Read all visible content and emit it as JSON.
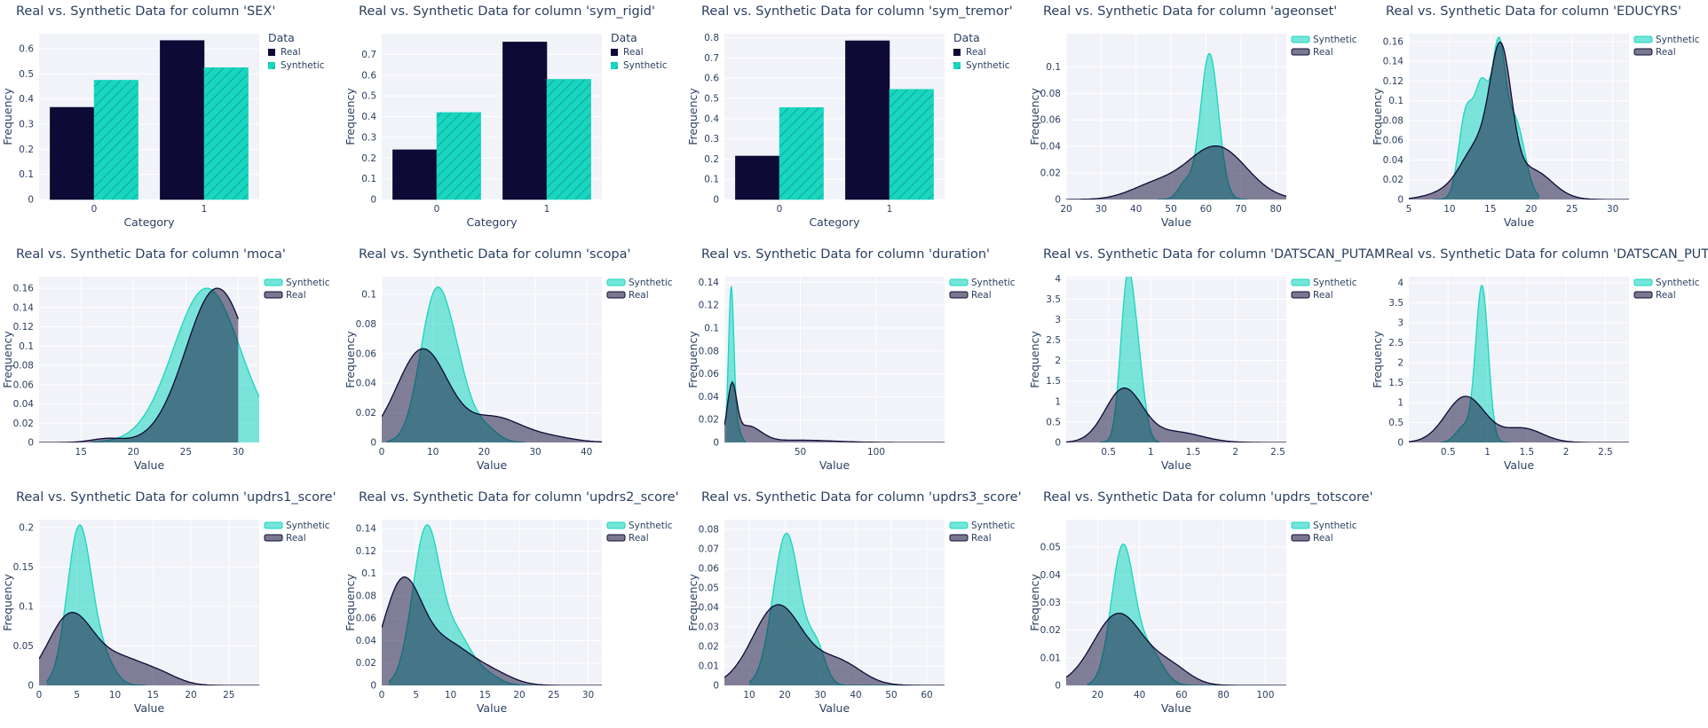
{
  "colors": {
    "real": "#0d0a35",
    "synthetic": "#18d6c0",
    "plot_bg": "#f2f3f9",
    "grid": "#ffffff",
    "text": "#2a3f5f"
  },
  "chart_data": [
    {
      "type": "bar",
      "title": "Real vs. Synthetic Data for column 'SEX'",
      "xlabel": "Category",
      "ylabel": "Frequency",
      "categories": [
        "0",
        "1"
      ],
      "series": [
        {
          "name": "Real",
          "values": [
            0.367,
            0.633
          ]
        },
        {
          "name": "Synthetic",
          "values": [
            0.475,
            0.525
          ]
        }
      ],
      "ylim": [
        0,
        0.66
      ],
      "yticks": [
        0,
        0.1,
        0.2,
        0.3,
        0.4,
        0.5,
        0.6
      ],
      "legend_title": "Data",
      "legend": [
        "Real",
        "Synthetic"
      ]
    },
    {
      "type": "bar",
      "title": "Real vs. Synthetic Data for column 'sym_rigid'",
      "xlabel": "Category",
      "ylabel": "Frequency",
      "categories": [
        "0",
        "1"
      ],
      "series": [
        {
          "name": "Real",
          "values": [
            0.24,
            0.76
          ]
        },
        {
          "name": "Synthetic",
          "values": [
            0.42,
            0.58
          ]
        }
      ],
      "ylim": [
        0,
        0.8
      ],
      "yticks": [
        0,
        0.1,
        0.2,
        0.3,
        0.4,
        0.5,
        0.6,
        0.7
      ],
      "legend_title": "Data",
      "legend": [
        "Real",
        "Synthetic"
      ]
    },
    {
      "type": "bar",
      "title": "Real vs. Synthetic Data for column 'sym_tremor'",
      "xlabel": "Category",
      "ylabel": "Frequency",
      "categories": [
        "0",
        "1"
      ],
      "series": [
        {
          "name": "Real",
          "values": [
            0.215,
            0.785
          ]
        },
        {
          "name": "Synthetic",
          "values": [
            0.455,
            0.545
          ]
        }
      ],
      "ylim": [
        0,
        0.82
      ],
      "yticks": [
        0,
        0.1,
        0.2,
        0.3,
        0.4,
        0.5,
        0.6,
        0.7,
        0.8
      ],
      "legend_title": "Data",
      "legend": [
        "Real",
        "Synthetic"
      ]
    },
    {
      "type": "area",
      "title": "Real vs. Synthetic Data for column 'ageonset'",
      "xlabel": "Value",
      "ylabel": "Frequency",
      "xlim": [
        20,
        83
      ],
      "ylim": [
        0,
        0.125
      ],
      "xticks": [
        20,
        30,
        40,
        50,
        60,
        70,
        80
      ],
      "yticks": [
        0,
        0.02,
        0.04,
        0.06,
        0.08,
        0.1
      ],
      "legend": [
        "Synthetic",
        "Real"
      ],
      "synthetic": {
        "range": [
          46,
          72
        ],
        "peaks": [
          [
            61,
            0.11,
            2.6
          ],
          [
            54,
            0.012,
            2.0
          ]
        ]
      },
      "real": {
        "range": [
          20,
          83
        ],
        "peaks": [
          [
            63,
            0.04,
            8.5
          ],
          [
            45,
            0.01,
            7
          ]
        ]
      }
    },
    {
      "type": "area",
      "title": "Real vs. Synthetic Data for column 'EDUCYRS'",
      "xlabel": "Value",
      "ylabel": "Frequency",
      "xlim": [
        5,
        32
      ],
      "ylim": [
        0,
        0.168
      ],
      "xticks": [
        5,
        10,
        15,
        20,
        25,
        30
      ],
      "yticks": [
        0,
        0.02,
        0.04,
        0.06,
        0.08,
        0.1,
        0.12,
        0.14,
        0.16
      ],
      "legend": [
        "Synthetic",
        "Real"
      ],
      "synthetic": {
        "range": [
          8,
          21
        ],
        "peaks": [
          [
            12,
            0.085,
            0.9
          ],
          [
            14,
            0.11,
            0.9
          ],
          [
            16,
            0.135,
            0.8
          ],
          [
            18,
            0.08,
            1.2
          ]
        ]
      },
      "real": {
        "range": [
          5,
          32
        ],
        "peaks": [
          [
            16.3,
            0.13,
            1.3
          ],
          [
            13.5,
            0.05,
            2.0
          ],
          [
            20,
            0.03,
            2.5
          ],
          [
            10,
            0.008,
            2.5
          ]
        ]
      }
    },
    {
      "type": "area",
      "title": "Real vs. Synthetic Data for column 'moca'",
      "xlabel": "Value",
      "ylabel": "Frequency",
      "xlim": [
        11,
        32
      ],
      "ylim": [
        0,
        0.172
      ],
      "xticks": [
        15,
        20,
        25,
        30
      ],
      "yticks": [
        0,
        0.02,
        0.04,
        0.06,
        0.08,
        0.1,
        0.12,
        0.14,
        0.16
      ],
      "legend": [
        "Synthetic",
        "Real"
      ],
      "synthetic": {
        "range": [
          16,
          32
        ],
        "peaks": [
          [
            27,
            0.16,
            3.2
          ]
        ]
      },
      "real": {
        "range": [
          11,
          30
        ],
        "peaks": [
          [
            28,
            0.16,
            3.0
          ],
          [
            17.5,
            0.004,
            1.5
          ]
        ]
      }
    },
    {
      "type": "area",
      "title": "Real vs. Synthetic Data for column 'scopa'",
      "xlabel": "Value",
      "ylabel": "Frequency",
      "xlim": [
        0,
        43
      ],
      "ylim": [
        0,
        0.112
      ],
      "xticks": [
        0,
        10,
        20,
        30,
        40
      ],
      "yticks": [
        0,
        0.02,
        0.04,
        0.06,
        0.08,
        0.1
      ],
      "legend": [
        "Synthetic",
        "Real"
      ],
      "synthetic": {
        "range": [
          1,
          28
        ],
        "peaks": [
          [
            10.5,
            0.098,
            3.0
          ],
          [
            15,
            0.03,
            2.5
          ],
          [
            20,
            0.01,
            2.5
          ]
        ]
      },
      "real": {
        "range": [
          0,
          43
        ],
        "peaks": [
          [
            8,
            0.063,
            5.0
          ],
          [
            22,
            0.016,
            5.0
          ],
          [
            32,
            0.004,
            5
          ]
        ]
      }
    },
    {
      "type": "area",
      "title": "Real vs. Synthetic Data for column 'duration'",
      "xlabel": "Value",
      "ylabel": "Frequency",
      "xlim": [
        0,
        145
      ],
      "ylim": [
        0,
        0.145
      ],
      "xticks": [
        0,
        50,
        100
      ],
      "xticklabels": [
        "",
        "50",
        "100"
      ],
      "yticks": [
        0,
        0.02,
        0.04,
        0.06,
        0.08,
        0.1,
        0.12,
        0.14
      ],
      "legend": [
        "Synthetic",
        "Real"
      ],
      "synthetic": {
        "range": [
          1,
          14
        ],
        "peaks": [
          [
            4.5,
            0.135,
            1.8
          ],
          [
            9,
            0.012,
            2
          ]
        ]
      },
      "real": {
        "range": [
          0,
          145
        ],
        "peaks": [
          [
            5,
            0.045,
            3
          ],
          [
            15,
            0.014,
            9
          ],
          [
            50,
            0.002,
            22
          ]
        ]
      }
    },
    {
      "type": "area",
      "title": "Real vs. Synthetic Data for column 'DATSCAN_PUTAM",
      "xlabel": "Value",
      "ylabel": "Frequency",
      "xlim": [
        0,
        2.6
      ],
      "ylim": [
        0,
        4.05
      ],
      "xticks": [
        0.5,
        1,
        1.5,
        2,
        2.5
      ],
      "yticks": [
        0,
        0.5,
        1,
        1.5,
        2,
        2.5,
        3,
        3.5,
        4
      ],
      "legend": [
        "Synthetic",
        "Real"
      ],
      "synthetic": {
        "range": [
          0.4,
          1.1
        ],
        "peaks": [
          [
            0.72,
            3.7,
            0.08
          ],
          [
            0.85,
            1.6,
            0.08
          ]
        ]
      },
      "real": {
        "range": [
          0,
          2.6
        ],
        "peaks": [
          [
            0.68,
            1.3,
            0.22
          ],
          [
            1.3,
            0.25,
            0.3
          ]
        ]
      }
    },
    {
      "type": "area",
      "title": "Real vs. Synthetic Data for column 'DATSCAN_PUTAM",
      "xlabel": "Value",
      "ylabel": "Frequency",
      "xlim": [
        0,
        2.8
      ],
      "ylim": [
        0,
        4.15
      ],
      "xticks": [
        0.5,
        1,
        1.5,
        2,
        2.5
      ],
      "yticks": [
        0,
        0.5,
        1,
        1.5,
        2,
        2.5,
        3,
        3.5,
        4
      ],
      "legend": [
        "Synthetic",
        "Real"
      ],
      "synthetic": {
        "range": [
          0.4,
          1.3
        ],
        "peaks": [
          [
            0.93,
            3.9,
            0.08
          ],
          [
            0.7,
            0.4,
            0.1
          ]
        ]
      },
      "real": {
        "range": [
          0,
          2.8
        ],
        "peaks": [
          [
            0.72,
            1.15,
            0.25
          ],
          [
            1.45,
            0.35,
            0.25
          ]
        ]
      }
    },
    {
      "type": "area",
      "title": "Real vs. Synthetic Data for column 'updrs1_score'",
      "xlabel": "Value",
      "ylabel": "Frequency",
      "xlim": [
        0,
        29
      ],
      "ylim": [
        0,
        0.21
      ],
      "xticks": [
        0,
        5,
        10,
        15,
        20,
        25
      ],
      "yticks": [
        0,
        0.05,
        0.1,
        0.15,
        0.2
      ],
      "legend": [
        "Synthetic",
        "Real"
      ],
      "synthetic": {
        "range": [
          1,
          14
        ],
        "peaks": [
          [
            5.3,
            0.2,
            1.6
          ],
          [
            8.5,
            0.03,
            1.5
          ]
        ]
      },
      "real": {
        "range": [
          0,
          29
        ],
        "peaks": [
          [
            4.2,
            0.09,
            3.0
          ],
          [
            11,
            0.03,
            3.0
          ],
          [
            16,
            0.012,
            2.5
          ]
        ]
      }
    },
    {
      "type": "area",
      "title": "Real vs. Synthetic Data for column 'updrs2_score'",
      "xlabel": "Value",
      "ylabel": "Frequency",
      "xlim": [
        0,
        32
      ],
      "ylim": [
        0,
        0.148
      ],
      "xticks": [
        0,
        5,
        10,
        15,
        20,
        25,
        30
      ],
      "yticks": [
        0,
        0.02,
        0.04,
        0.06,
        0.08,
        0.1,
        0.12,
        0.14
      ],
      "legend": [
        "Synthetic",
        "Real"
      ],
      "synthetic": {
        "range": [
          1,
          22
        ],
        "peaks": [
          [
            6.5,
            0.14,
            2.0
          ],
          [
            11,
            0.04,
            2.0
          ],
          [
            15,
            0.01,
            2.0
          ]
        ]
      },
      "real": {
        "range": [
          0,
          32
        ],
        "peaks": [
          [
            3,
            0.09,
            2.8
          ],
          [
            9.5,
            0.035,
            3.5
          ],
          [
            16,
            0.01,
            3
          ]
        ]
      }
    },
    {
      "type": "area",
      "title": "Real vs. Synthetic Data for column 'updrs3_score'",
      "xlabel": "Value",
      "ylabel": "Frequency",
      "xlim": [
        3,
        65
      ],
      "ylim": [
        0,
        0.085
      ],
      "xticks": [
        10,
        20,
        30,
        40,
        50,
        60
      ],
      "yticks": [
        0,
        0.01,
        0.02,
        0.03,
        0.04,
        0.05,
        0.06,
        0.07,
        0.08
      ],
      "legend": [
        "Synthetic",
        "Real"
      ],
      "synthetic": {
        "range": [
          10,
          65
        ],
        "peaks": [
          [
            20.5,
            0.078,
            3.8
          ],
          [
            29,
            0.018,
            2.5
          ]
        ]
      },
      "real": {
        "range": [
          3,
          65
        ],
        "peaks": [
          [
            18,
            0.041,
            7.0
          ],
          [
            35,
            0.012,
            6.5
          ]
        ]
      }
    },
    {
      "type": "area",
      "title": "Real vs. Synthetic Data for column 'updrs_totscore'",
      "xlabel": "Value",
      "ylabel": "Frequency",
      "xlim": [
        5,
        110
      ],
      "ylim": [
        0,
        0.06
      ],
      "xticks": [
        20,
        40,
        60,
        80,
        100
      ],
      "yticks": [
        0,
        0.01,
        0.02,
        0.03,
        0.04,
        0.05
      ],
      "legend": [
        "Synthetic",
        "Real"
      ],
      "synthetic": {
        "range": [
          15,
          105
        ],
        "peaks": [
          [
            32,
            0.05,
            5.5
          ],
          [
            45,
            0.012,
            6
          ]
        ]
      },
      "real": {
        "range": [
          5,
          110
        ],
        "peaks": [
          [
            30,
            0.026,
            12
          ],
          [
            55,
            0.006,
            9
          ]
        ]
      }
    }
  ]
}
